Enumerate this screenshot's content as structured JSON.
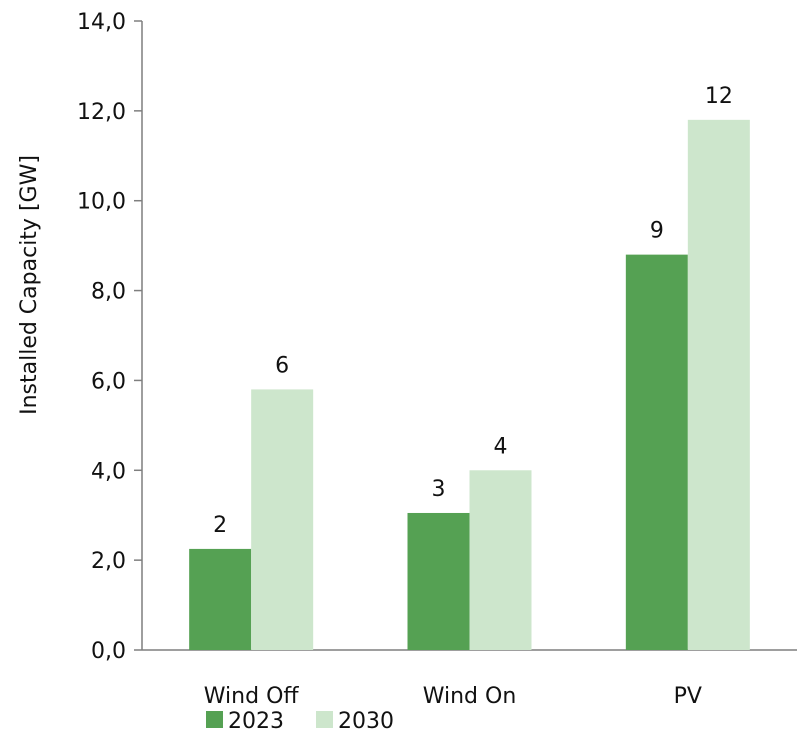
{
  "chart_data": {
    "type": "bar",
    "title": "",
    "xlabel": "",
    "ylabel": "Installed Capacity [GW]",
    "ylim": [
      0,
      14
    ],
    "yticks": [
      0,
      2,
      4,
      6,
      8,
      10,
      12,
      14
    ],
    "ytick_labels": [
      "0,0",
      "2,0",
      "4,0",
      "6,0",
      "8,0",
      "10,0",
      "12,0",
      "14,0"
    ],
    "categories": [
      "Wind Off",
      "Wind On",
      "PV"
    ],
    "series": [
      {
        "name": "2023",
        "color": "#55a153",
        "values": [
          2.25,
          3.05,
          8.8
        ],
        "labels": [
          "2",
          "3",
          "9"
        ]
      },
      {
        "name": "2030",
        "color": "#cde6cc",
        "values": [
          5.8,
          4.0,
          11.8
        ],
        "labels": [
          "6",
          "4",
          "12"
        ]
      }
    ],
    "legend_position": "bottom-center",
    "grid": false
  }
}
